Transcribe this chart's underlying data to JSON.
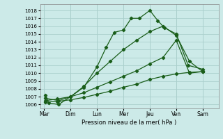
{
  "xlabel": "Pression niveau de la mer( hPa )",
  "bg_color": "#cceae8",
  "grid_color": "#aacfcc",
  "line_color": "#1a5e1a",
  "xlabels": [
    "Mar",
    "Dim",
    "Lun",
    "Mer",
    "Jeu",
    "Ven",
    "Sam"
  ],
  "x_positions": [
    0,
    1,
    2,
    3,
    4,
    5,
    6
  ],
  "ylim": [
    1005.5,
    1018.8
  ],
  "xlim": [
    -0.15,
    6.6
  ],
  "yticks": [
    1006,
    1007,
    1008,
    1009,
    1010,
    1011,
    1012,
    1013,
    1014,
    1015,
    1016,
    1017,
    1018
  ],
  "series": [
    {
      "x": [
        0.05,
        0.18,
        0.55,
        1.0,
        1.5,
        2.0,
        2.35,
        2.65,
        3.0,
        3.3,
        3.6,
        4.0,
        4.3,
        4.55,
        5.0,
        5.45,
        6.0
      ],
      "y": [
        1007.2,
        1006.2,
        1006.0,
        1007.0,
        1008.2,
        1010.8,
        1013.3,
        1015.2,
        1015.5,
        1017.0,
        1017.0,
        1018.0,
        1016.7,
        1015.8,
        1015.0,
        1011.0,
        1010.5
      ]
    },
    {
      "x": [
        0.05,
        0.55,
        1.0,
        1.5,
        2.0,
        2.5,
        3.0,
        3.5,
        4.0,
        4.5,
        5.0,
        5.5,
        6.0
      ],
      "y": [
        1006.8,
        1006.5,
        1007.0,
        1008.3,
        1010.0,
        1011.5,
        1013.0,
        1014.2,
        1015.3,
        1016.0,
        1014.8,
        1011.5,
        1010.2
      ]
    },
    {
      "x": [
        0.05,
        0.5,
        1.0,
        1.5,
        2.0,
        2.5,
        3.0,
        3.5,
        4.0,
        4.5,
        5.0,
        5.5,
        6.0
      ],
      "y": [
        1006.5,
        1006.7,
        1007.0,
        1007.5,
        1008.2,
        1008.9,
        1009.6,
        1010.3,
        1011.2,
        1012.0,
        1014.2,
        1010.0,
        1010.2
      ]
    },
    {
      "x": [
        0.05,
        0.5,
        1.0,
        1.5,
        2.0,
        2.5,
        3.0,
        3.5,
        4.0,
        4.5,
        5.0,
        5.5,
        6.0
      ],
      "y": [
        1006.3,
        1006.4,
        1006.6,
        1006.9,
        1007.3,
        1007.7,
        1008.2,
        1008.6,
        1009.2,
        1009.6,
        1009.9,
        1010.1,
        1010.2
      ]
    }
  ]
}
